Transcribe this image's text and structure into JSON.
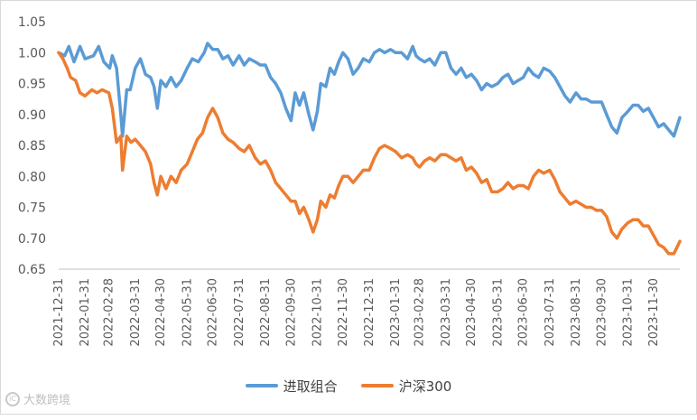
{
  "chart_data": {
    "type": "line",
    "title": "",
    "xlabel": "",
    "ylabel": "",
    "ylim": [
      0.65,
      1.05
    ],
    "yticks": [
      "0.65",
      "0.70",
      "0.75",
      "0.80",
      "0.85",
      "0.90",
      "0.95",
      "1.00",
      "1.05"
    ],
    "x_tick_labels": [
      "2021-12-31",
      "2022-01-31",
      "2022-02-28",
      "2022-03-31",
      "2022-04-30",
      "2022-05-31",
      "2022-06-30",
      "2022-07-31",
      "2022-08-31",
      "2022-09-30",
      "2022-10-31",
      "2022-11-30",
      "2022-12-31",
      "2023-01-31",
      "2023-02-28",
      "2023-03-31",
      "2023-04-30",
      "2023-05-31",
      "2023-06-30",
      "2023-07-31",
      "2023-08-31",
      "2023-09-30",
      "2023-10-31",
      "2023-11-30"
    ],
    "x_end": "2023-12-31",
    "grid": false,
    "legend_position": "bottom",
    "series": [
      {
        "name": "进取组合",
        "color": "#5b9bd5",
        "points": [
          [
            "2021-12-31",
            1.0
          ],
          [
            "2022-01-07",
            0.995
          ],
          [
            "2022-01-12",
            1.01
          ],
          [
            "2022-01-18",
            0.985
          ],
          [
            "2022-01-25",
            1.01
          ],
          [
            "2022-01-31",
            0.99
          ],
          [
            "2022-02-10",
            0.995
          ],
          [
            "2022-02-16",
            1.01
          ],
          [
            "2022-02-22",
            0.985
          ],
          [
            "2022-03-01",
            0.975
          ],
          [
            "2022-03-04",
            0.995
          ],
          [
            "2022-03-09",
            0.975
          ],
          [
            "2022-03-14",
            0.9
          ],
          [
            "2022-03-16",
            0.865
          ],
          [
            "2022-03-21",
            0.94
          ],
          [
            "2022-03-25",
            0.94
          ],
          [
            "2022-03-31",
            0.975
          ],
          [
            "2022-04-06",
            0.99
          ],
          [
            "2022-04-12",
            0.965
          ],
          [
            "2022-04-18",
            0.96
          ],
          [
            "2022-04-22",
            0.945
          ],
          [
            "2022-04-26",
            0.91
          ],
          [
            "2022-04-30",
            0.955
          ],
          [
            "2022-05-06",
            0.945
          ],
          [
            "2022-05-12",
            0.96
          ],
          [
            "2022-05-18",
            0.945
          ],
          [
            "2022-05-24",
            0.955
          ],
          [
            "2022-05-31",
            0.975
          ],
          [
            "2022-06-06",
            0.99
          ],
          [
            "2022-06-13",
            0.985
          ],
          [
            "2022-06-20",
            1.0
          ],
          [
            "2022-06-24",
            1.015
          ],
          [
            "2022-06-30",
            1.005
          ],
          [
            "2022-07-06",
            1.005
          ],
          [
            "2022-07-12",
            0.99
          ],
          [
            "2022-07-18",
            0.995
          ],
          [
            "2022-07-24",
            0.98
          ],
          [
            "2022-07-31",
            0.995
          ],
          [
            "2022-08-06",
            0.98
          ],
          [
            "2022-08-12",
            0.99
          ],
          [
            "2022-08-19",
            0.985
          ],
          [
            "2022-08-25",
            0.98
          ],
          [
            "2022-08-31",
            0.98
          ],
          [
            "2022-09-06",
            0.96
          ],
          [
            "2022-09-12",
            0.95
          ],
          [
            "2022-09-18",
            0.935
          ],
          [
            "2022-09-24",
            0.91
          ],
          [
            "2022-09-30",
            0.89
          ],
          [
            "2022-10-05",
            0.935
          ],
          [
            "2022-10-10",
            0.915
          ],
          [
            "2022-10-15",
            0.935
          ],
          [
            "2022-10-21",
            0.9
          ],
          [
            "2022-10-26",
            0.875
          ],
          [
            "2022-10-31",
            0.905
          ],
          [
            "2022-11-04",
            0.95
          ],
          [
            "2022-11-10",
            0.945
          ],
          [
            "2022-11-15",
            0.975
          ],
          [
            "2022-11-20",
            0.965
          ],
          [
            "2022-11-25",
            0.985
          ],
          [
            "2022-11-30",
            1.0
          ],
          [
            "2022-12-06",
            0.99
          ],
          [
            "2022-12-12",
            0.965
          ],
          [
            "2022-12-18",
            0.975
          ],
          [
            "2022-12-24",
            0.99
          ],
          [
            "2022-12-31",
            0.985
          ],
          [
            "2023-01-06",
            1.0
          ],
          [
            "2023-01-12",
            1.005
          ],
          [
            "2023-01-18",
            1.0
          ],
          [
            "2023-01-25",
            1.005
          ],
          [
            "2023-01-31",
            1.0
          ],
          [
            "2023-02-07",
            1.0
          ],
          [
            "2023-02-14",
            0.99
          ],
          [
            "2023-02-20",
            1.01
          ],
          [
            "2023-02-24",
            0.995
          ],
          [
            "2023-02-28",
            0.99
          ],
          [
            "2023-03-06",
            0.985
          ],
          [
            "2023-03-12",
            0.99
          ],
          [
            "2023-03-18",
            0.98
          ],
          [
            "2023-03-25",
            1.0
          ],
          [
            "2023-03-31",
            1.0
          ],
          [
            "2023-04-06",
            0.975
          ],
          [
            "2023-04-12",
            0.965
          ],
          [
            "2023-04-18",
            0.975
          ],
          [
            "2023-04-24",
            0.96
          ],
          [
            "2023-04-30",
            0.965
          ],
          [
            "2023-05-06",
            0.955
          ],
          [
            "2023-05-12",
            0.94
          ],
          [
            "2023-05-18",
            0.95
          ],
          [
            "2023-05-24",
            0.945
          ],
          [
            "2023-05-31",
            0.95
          ],
          [
            "2023-06-06",
            0.96
          ],
          [
            "2023-06-12",
            0.965
          ],
          [
            "2023-06-18",
            0.95
          ],
          [
            "2023-06-24",
            0.955
          ],
          [
            "2023-06-30",
            0.96
          ],
          [
            "2023-07-06",
            0.975
          ],
          [
            "2023-07-12",
            0.965
          ],
          [
            "2023-07-18",
            0.96
          ],
          [
            "2023-07-24",
            0.975
          ],
          [
            "2023-07-31",
            0.97
          ],
          [
            "2023-08-06",
            0.96
          ],
          [
            "2023-08-12",
            0.945
          ],
          [
            "2023-08-18",
            0.93
          ],
          [
            "2023-08-24",
            0.92
          ],
          [
            "2023-08-31",
            0.935
          ],
          [
            "2023-09-06",
            0.925
          ],
          [
            "2023-09-12",
            0.925
          ],
          [
            "2023-09-18",
            0.92
          ],
          [
            "2023-09-24",
            0.92
          ],
          [
            "2023-09-30",
            0.92
          ],
          [
            "2023-10-06",
            0.9
          ],
          [
            "2023-10-12",
            0.88
          ],
          [
            "2023-10-18",
            0.87
          ],
          [
            "2023-10-24",
            0.895
          ],
          [
            "2023-10-31",
            0.905
          ],
          [
            "2023-11-06",
            0.915
          ],
          [
            "2023-11-12",
            0.915
          ],
          [
            "2023-11-18",
            0.905
          ],
          [
            "2023-11-24",
            0.91
          ],
          [
            "2023-11-30",
            0.895
          ],
          [
            "2023-12-06",
            0.88
          ],
          [
            "2023-12-12",
            0.885
          ],
          [
            "2023-12-18",
            0.875
          ],
          [
            "2023-12-24",
            0.865
          ],
          [
            "2023-12-31",
            0.895
          ]
        ]
      },
      {
        "name": "沪深300",
        "color": "#ed7d31",
        "points": [
          [
            "2021-12-31",
            1.0
          ],
          [
            "2022-01-05",
            0.99
          ],
          [
            "2022-01-10",
            0.975
          ],
          [
            "2022-01-14",
            0.96
          ],
          [
            "2022-01-20",
            0.955
          ],
          [
            "2022-01-25",
            0.935
          ],
          [
            "2022-01-31",
            0.93
          ],
          [
            "2022-02-08",
            0.94
          ],
          [
            "2022-02-14",
            0.935
          ],
          [
            "2022-02-20",
            0.94
          ],
          [
            "2022-02-28",
            0.935
          ],
          [
            "2022-03-04",
            0.91
          ],
          [
            "2022-03-09",
            0.855
          ],
          [
            "2022-03-14",
            0.865
          ],
          [
            "2022-03-16",
            0.81
          ],
          [
            "2022-03-21",
            0.865
          ],
          [
            "2022-03-26",
            0.855
          ],
          [
            "2022-03-31",
            0.86
          ],
          [
            "2022-04-06",
            0.85
          ],
          [
            "2022-04-12",
            0.84
          ],
          [
            "2022-04-18",
            0.82
          ],
          [
            "2022-04-22",
            0.79
          ],
          [
            "2022-04-26",
            0.77
          ],
          [
            "2022-04-30",
            0.8
          ],
          [
            "2022-05-06",
            0.78
          ],
          [
            "2022-05-12",
            0.8
          ],
          [
            "2022-05-18",
            0.79
          ],
          [
            "2022-05-24",
            0.81
          ],
          [
            "2022-05-31",
            0.82
          ],
          [
            "2022-06-06",
            0.84
          ],
          [
            "2022-06-12",
            0.86
          ],
          [
            "2022-06-18",
            0.87
          ],
          [
            "2022-06-24",
            0.895
          ],
          [
            "2022-06-30",
            0.91
          ],
          [
            "2022-07-06",
            0.895
          ],
          [
            "2022-07-12",
            0.87
          ],
          [
            "2022-07-18",
            0.86
          ],
          [
            "2022-07-24",
            0.855
          ],
          [
            "2022-07-31",
            0.845
          ],
          [
            "2022-08-06",
            0.84
          ],
          [
            "2022-08-12",
            0.85
          ],
          [
            "2022-08-19",
            0.83
          ],
          [
            "2022-08-25",
            0.82
          ],
          [
            "2022-08-31",
            0.825
          ],
          [
            "2022-09-06",
            0.81
          ],
          [
            "2022-09-12",
            0.79
          ],
          [
            "2022-09-18",
            0.78
          ],
          [
            "2022-09-24",
            0.77
          ],
          [
            "2022-09-30",
            0.76
          ],
          [
            "2022-10-05",
            0.76
          ],
          [
            "2022-10-10",
            0.74
          ],
          [
            "2022-10-15",
            0.75
          ],
          [
            "2022-10-21",
            0.73
          ],
          [
            "2022-10-26",
            0.71
          ],
          [
            "2022-10-31",
            0.73
          ],
          [
            "2022-11-04",
            0.76
          ],
          [
            "2022-11-10",
            0.75
          ],
          [
            "2022-11-15",
            0.77
          ],
          [
            "2022-11-20",
            0.765
          ],
          [
            "2022-11-25",
            0.785
          ],
          [
            "2022-11-30",
            0.8
          ],
          [
            "2022-12-06",
            0.8
          ],
          [
            "2022-12-12",
            0.79
          ],
          [
            "2022-12-18",
            0.8
          ],
          [
            "2022-12-24",
            0.81
          ],
          [
            "2022-12-31",
            0.81
          ],
          [
            "2023-01-06",
            0.83
          ],
          [
            "2023-01-12",
            0.845
          ],
          [
            "2023-01-18",
            0.85
          ],
          [
            "2023-01-25",
            0.845
          ],
          [
            "2023-01-31",
            0.84
          ],
          [
            "2023-02-07",
            0.83
          ],
          [
            "2023-02-14",
            0.835
          ],
          [
            "2023-02-20",
            0.83
          ],
          [
            "2023-02-24",
            0.82
          ],
          [
            "2023-02-28",
            0.815
          ],
          [
            "2023-03-06",
            0.825
          ],
          [
            "2023-03-12",
            0.83
          ],
          [
            "2023-03-18",
            0.825
          ],
          [
            "2023-03-25",
            0.835
          ],
          [
            "2023-03-31",
            0.835
          ],
          [
            "2023-04-06",
            0.83
          ],
          [
            "2023-04-12",
            0.825
          ],
          [
            "2023-04-18",
            0.83
          ],
          [
            "2023-04-24",
            0.81
          ],
          [
            "2023-04-30",
            0.815
          ],
          [
            "2023-05-06",
            0.805
          ],
          [
            "2023-05-12",
            0.79
          ],
          [
            "2023-05-18",
            0.795
          ],
          [
            "2023-05-24",
            0.775
          ],
          [
            "2023-05-31",
            0.775
          ],
          [
            "2023-06-06",
            0.78
          ],
          [
            "2023-06-12",
            0.79
          ],
          [
            "2023-06-18",
            0.78
          ],
          [
            "2023-06-24",
            0.785
          ],
          [
            "2023-06-30",
            0.785
          ],
          [
            "2023-07-06",
            0.78
          ],
          [
            "2023-07-12",
            0.8
          ],
          [
            "2023-07-18",
            0.81
          ],
          [
            "2023-07-24",
            0.805
          ],
          [
            "2023-07-31",
            0.81
          ],
          [
            "2023-08-06",
            0.795
          ],
          [
            "2023-08-12",
            0.775
          ],
          [
            "2023-08-18",
            0.765
          ],
          [
            "2023-08-24",
            0.755
          ],
          [
            "2023-08-31",
            0.76
          ],
          [
            "2023-09-06",
            0.755
          ],
          [
            "2023-09-12",
            0.75
          ],
          [
            "2023-09-18",
            0.75
          ],
          [
            "2023-09-24",
            0.745
          ],
          [
            "2023-09-30",
            0.745
          ],
          [
            "2023-10-06",
            0.735
          ],
          [
            "2023-10-12",
            0.71
          ],
          [
            "2023-10-18",
            0.7
          ],
          [
            "2023-10-24",
            0.715
          ],
          [
            "2023-10-31",
            0.725
          ],
          [
            "2023-11-06",
            0.73
          ],
          [
            "2023-11-12",
            0.73
          ],
          [
            "2023-11-18",
            0.72
          ],
          [
            "2023-11-24",
            0.72
          ],
          [
            "2023-11-30",
            0.705
          ],
          [
            "2023-12-06",
            0.69
          ],
          [
            "2023-12-12",
            0.685
          ],
          [
            "2023-12-18",
            0.675
          ],
          [
            "2023-12-24",
            0.675
          ],
          [
            "2023-12-31",
            0.695
          ]
        ]
      }
    ]
  },
  "watermark": {
    "text": "大数跨境",
    "logo_text": "iC"
  }
}
